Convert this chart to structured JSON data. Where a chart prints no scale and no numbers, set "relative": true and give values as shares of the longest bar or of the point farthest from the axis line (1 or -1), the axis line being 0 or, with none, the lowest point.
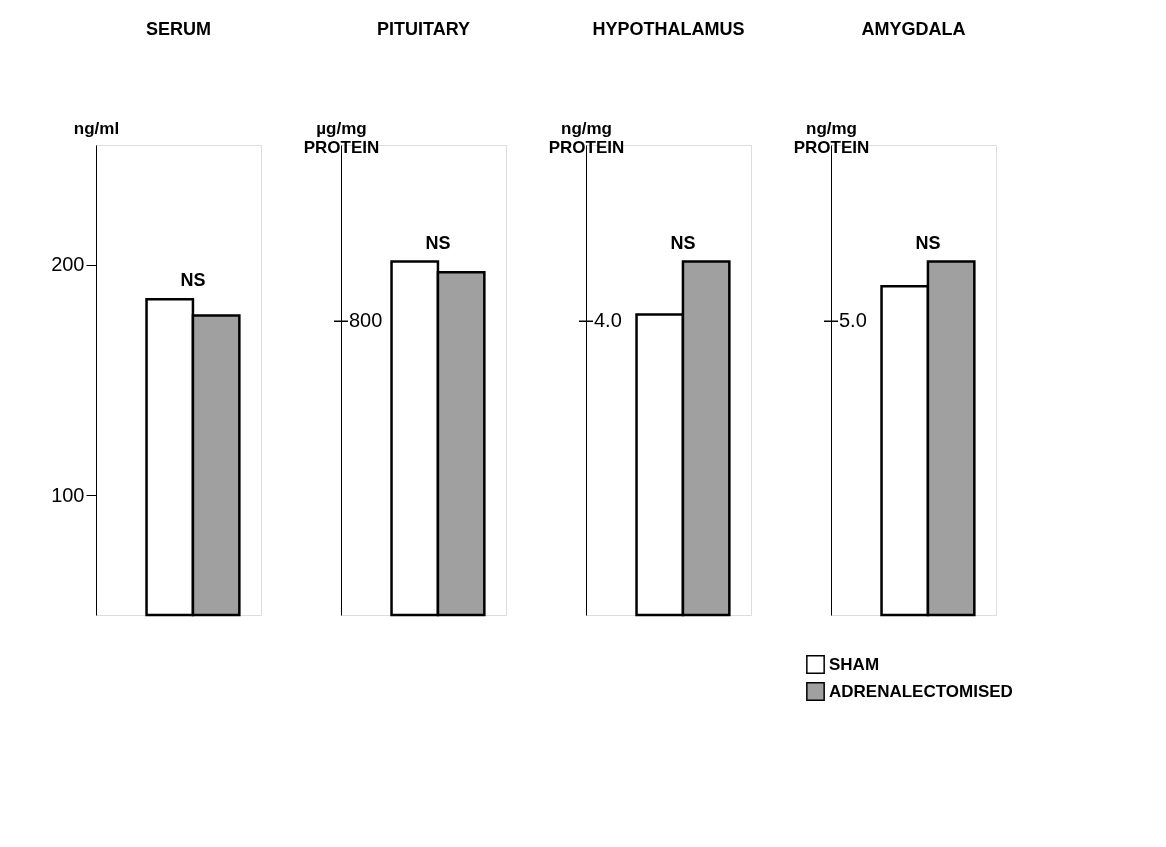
{
  "chart_data": [
    {
      "type": "bar",
      "title": "SERUM",
      "ylabel": "ng/ml",
      "categories": [
        null
      ],
      "ylim": [
        48,
        252
      ],
      "yticks": [
        100,
        200
      ],
      "annotations": [
        "NS"
      ],
      "series": [
        {
          "color": "#ffffff",
          "values": [
            185
          ]
        },
        {
          "color": "#a0a0a0",
          "values": [
            178
          ]
        }
      ]
    },
    {
      "type": "bar",
      "title": "PITUITARY",
      "ylabel": "µg/mg PROTEIN",
      "categories": [
        null
      ],
      "relative": true,
      "annotations": [
        "NS",
        "800"
      ],
      "series": [
        {
          "color": "#ffffff",
          "values": [
            1
          ]
        },
        {
          "color": "#a0a0a0",
          "values": [
            0.97
          ]
        }
      ]
    },
    {
      "type": "bar",
      "title": "HYPOTHALAMUS",
      "ylabel": "ng/mg PROTEIN",
      "categories": [
        null
      ],
      "relative": true,
      "annotations": [
        "NS",
        "4.0"
      ],
      "series": [
        {
          "color": "#ffffff",
          "values": [
            0.85
          ]
        },
        {
          "color": "#a0a0a0",
          "values": [
            1
          ]
        }
      ]
    },
    {
      "type": "bar",
      "title": "AMYGDALA",
      "ylabel": "ng/mg PROTEIN",
      "categories": [
        null
      ],
      "relative": true,
      "annotations": [
        "NS",
        "5.0"
      ],
      "legend": "bottom right",
      "series": [
        {
          "name": "SHAM",
          "color": "#ffffff",
          "values": [
            0.93
          ]
        },
        {
          "name": "ADRENALECTOMISED",
          "color": "#a0a0a0",
          "values": [
            1
          ]
        }
      ]
    }
  ]
}
